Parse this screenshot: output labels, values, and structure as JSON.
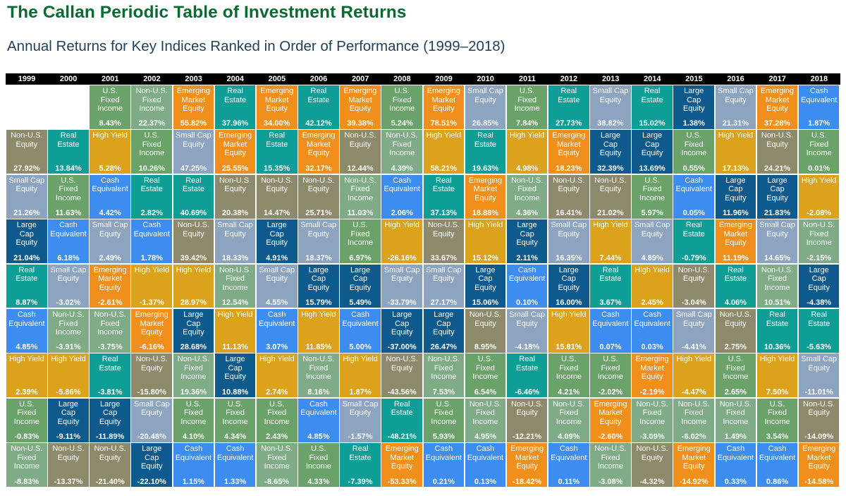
{
  "title": "The Callan Periodic Table of Investment Returns",
  "subtitle": "Annual Returns for Key Indices Ranked in Order of Performance (1999–2018)",
  "chart_data": {
    "type": "table",
    "years": [
      "1999",
      "2000",
      "2001",
      "2002",
      "2003",
      "2004",
      "2005",
      "2006",
      "2007",
      "2008",
      "2009",
      "2010",
      "2011",
      "2012",
      "2013",
      "2014",
      "2015",
      "2016",
      "2017",
      "2018"
    ],
    "asset_classes": {
      "nonus": {
        "name": "Non-U.S.\nEquity",
        "color": "#8c8a6b"
      },
      "re": {
        "name": "Real\nEstate",
        "color": "#0f9e96"
      },
      "fi": {
        "name": "U.S.\nFixed\nIncome",
        "color": "#6aa26a"
      },
      "em": {
        "name": "Emerging\nMarket\nEquity",
        "color": "#f18f1d"
      },
      "sc": {
        "name": "Small Cap\nEquity",
        "color": "#8ca4bf"
      },
      "lc": {
        "name": "Large\nCap\nEquity",
        "color": "#0f5a8c"
      },
      "cash": {
        "name": "Cash\nEquivalent",
        "color": "#3d8cf0"
      },
      "hy": {
        "name": "High Yield",
        "color": "#dca21c"
      },
      "nfi": {
        "name": "Non-U.S.\nFixed\nIncome",
        "color": "#7fab87"
      }
    },
    "columns": [
      [
        [
          "nonus",
          "27.92%"
        ],
        [
          "sc",
          "21.26%"
        ],
        [
          "lc",
          "21.04%"
        ],
        [
          "re",
          "8.87%"
        ],
        [
          "cash",
          "4.85%"
        ],
        [
          "hy",
          "2.39%"
        ],
        [
          "fi",
          "-0.83%"
        ],
        [
          "nfi",
          "-8.83%"
        ]
      ],
      [
        [
          "re",
          "13.84%"
        ],
        [
          "fi",
          "11.63%"
        ],
        [
          "cash",
          "6.18%"
        ],
        [
          "sc",
          "-3.02%"
        ],
        [
          "nfi",
          "-3.91%"
        ],
        [
          "hy",
          "-5.86%"
        ],
        [
          "lc",
          "-9.11%"
        ],
        [
          "nonus",
          "-13.37%"
        ]
      ],
      [
        [
          "fi",
          "8.43%"
        ],
        [
          "hy",
          "5.28%"
        ],
        [
          "cash",
          "4.42%"
        ],
        [
          "sc",
          "2.49%"
        ],
        [
          "em",
          "-2.61%"
        ],
        [
          "nfi",
          "-3.75%"
        ],
        [
          "re",
          "-3.81%"
        ],
        [
          "lc",
          "-11.89%"
        ],
        [
          "nonus",
          "-21.40%"
        ]
      ],
      [
        [
          "nfi",
          "22.37%"
        ],
        [
          "fi",
          "10.26%"
        ],
        [
          "re",
          "2.82%"
        ],
        [
          "cash",
          "1.78%"
        ],
        [
          "hy",
          "-1.37%"
        ],
        [
          "em",
          "-6.16%"
        ],
        [
          "nonus",
          "-15.80%"
        ],
        [
          "sc",
          "-20.48%"
        ],
        [
          "lc",
          "-22.10%"
        ]
      ],
      [
        [
          "em",
          "55.82%"
        ],
        [
          "sc",
          "47.25%"
        ],
        [
          "re",
          "40.69%"
        ],
        [
          "nonus",
          "39.42%"
        ],
        [
          "hy",
          "28.97%"
        ],
        [
          "lc",
          "28.68%"
        ],
        [
          "nfi",
          "19.36%"
        ],
        [
          "fi",
          "4.10%"
        ],
        [
          "cash",
          "1.15%"
        ]
      ],
      [
        [
          "re",
          "37.96%"
        ],
        [
          "em",
          "25.55%"
        ],
        [
          "nonus",
          "20.38%"
        ],
        [
          "sc",
          "18.33%"
        ],
        [
          "nfi",
          "12.54%"
        ],
        [
          "hy",
          "11.13%"
        ],
        [
          "lc",
          "10.88%"
        ],
        [
          "fi",
          "4.34%"
        ],
        [
          "cash",
          "1.33%"
        ]
      ],
      [
        [
          "em",
          "34.00%"
        ],
        [
          "re",
          "15.35%"
        ],
        [
          "nonus",
          "14.47%"
        ],
        [
          "lc",
          "4.91%"
        ],
        [
          "sc",
          "4.55%"
        ],
        [
          "cash",
          "3.07%"
        ],
        [
          "hy",
          "2.74%"
        ],
        [
          "fi",
          "2.43%"
        ],
        [
          "nfi",
          "-8.65%"
        ]
      ],
      [
        [
          "re",
          "42.12%"
        ],
        [
          "em",
          "32.17%"
        ],
        [
          "nonus",
          "25.71%"
        ],
        [
          "sc",
          "18.37%"
        ],
        [
          "lc",
          "15.79%"
        ],
        [
          "hy",
          "11.85%"
        ],
        [
          "nfi",
          "8.16%"
        ],
        [
          "cash",
          "4.85%"
        ],
        [
          "fi",
          "4.33%"
        ]
      ],
      [
        [
          "em",
          "39.38%"
        ],
        [
          "nonus",
          "12.44%"
        ],
        [
          "nfi",
          "11.03%"
        ],
        [
          "fi",
          "6.97%"
        ],
        [
          "lc",
          "5.49%"
        ],
        [
          "cash",
          "5.00%"
        ],
        [
          "hy",
          "1.87%"
        ],
        [
          "sc",
          "-1.57%"
        ],
        [
          "re",
          "-7.39%"
        ]
      ],
      [
        [
          "fi",
          "5.24%"
        ],
        [
          "nfi",
          "4.39%"
        ],
        [
          "cash",
          "2.06%"
        ],
        [
          "hy",
          "-26.16%"
        ],
        [
          "sc",
          "-33.79%"
        ],
        [
          "lc",
          "-37.00%"
        ],
        [
          "nonus",
          "-43.56%"
        ],
        [
          "re",
          "-48.21%"
        ],
        [
          "em",
          "-53.33%"
        ]
      ],
      [
        [
          "em",
          "78.51%"
        ],
        [
          "hy",
          "58.21%"
        ],
        [
          "re",
          "37.13%"
        ],
        [
          "nonus",
          "33.67%"
        ],
        [
          "sc",
          "27.17%"
        ],
        [
          "lc",
          "26.47%"
        ],
        [
          "nfi",
          "7.53%"
        ],
        [
          "fi",
          "5.93%"
        ],
        [
          "cash",
          "0.21%"
        ]
      ],
      [
        [
          "sc",
          "26.85%"
        ],
        [
          "re",
          "19.63%"
        ],
        [
          "em",
          "18.88%"
        ],
        [
          "hy",
          "15.12%"
        ],
        [
          "lc",
          "15.06%"
        ],
        [
          "nonus",
          "8.95%"
        ],
        [
          "fi",
          "6.54%"
        ],
        [
          "nfi",
          "4.95%"
        ],
        [
          "cash",
          "0.13%"
        ]
      ],
      [
        [
          "fi",
          "7.84%"
        ],
        [
          "hy",
          "4.98%"
        ],
        [
          "nfi",
          "4.36%"
        ],
        [
          "lc",
          "2.11%"
        ],
        [
          "cash",
          "0.10%"
        ],
        [
          "sc",
          "-4.18%"
        ],
        [
          "re",
          "-6.46%"
        ],
        [
          "nonus",
          "-12.21%"
        ],
        [
          "em",
          "-18.42%"
        ]
      ],
      [
        [
          "re",
          "27.73%"
        ],
        [
          "em",
          "18.23%"
        ],
        [
          "nonus",
          "16.41%"
        ],
        [
          "sc",
          "16.35%"
        ],
        [
          "lc",
          "16.00%"
        ],
        [
          "hy",
          "15.81%"
        ],
        [
          "fi",
          "4.21%"
        ],
        [
          "nfi",
          "4.09%"
        ],
        [
          "cash",
          "0.11%"
        ]
      ],
      [
        [
          "sc",
          "38.82%"
        ],
        [
          "lc",
          "32.39%"
        ],
        [
          "nonus",
          "21.02%"
        ],
        [
          "hy",
          "7.44%"
        ],
        [
          "re",
          "3.67%"
        ],
        [
          "cash",
          "0.07%"
        ],
        [
          "fi",
          "-2.02%"
        ],
        [
          "em",
          "-2.60%"
        ],
        [
          "nfi",
          "-3.08%"
        ]
      ],
      [
        [
          "re",
          "15.02%"
        ],
        [
          "lc",
          "13.69%"
        ],
        [
          "fi",
          "5.97%"
        ],
        [
          "sc",
          "4.89%"
        ],
        [
          "hy",
          "2.45%"
        ],
        [
          "cash",
          "0.03%"
        ],
        [
          "em",
          "-2.19%"
        ],
        [
          "nfi",
          "-3.09%"
        ],
        [
          "nonus",
          "-4.32%"
        ]
      ],
      [
        [
          "lc",
          "1.38%"
        ],
        [
          "fi",
          "0.55%"
        ],
        [
          "cash",
          "0.05%"
        ],
        [
          "re",
          "-0.79%"
        ],
        [
          "nonus",
          "-3.04%"
        ],
        [
          "sc",
          "-4.41%"
        ],
        [
          "hy",
          "-4.47%"
        ],
        [
          "nfi",
          "-6.02%"
        ],
        [
          "em",
          "-14.92%"
        ]
      ],
      [
        [
          "sc",
          "21.31%"
        ],
        [
          "hy",
          "17.13%"
        ],
        [
          "lc",
          "11.96%"
        ],
        [
          "em",
          "11.19%"
        ],
        [
          "re",
          "4.06%"
        ],
        [
          "nonus",
          "2.75%"
        ],
        [
          "fi",
          "2.65%"
        ],
        [
          "nfi",
          "1.49%"
        ],
        [
          "cash",
          "0.33%"
        ]
      ],
      [
        [
          "em",
          "37.28%"
        ],
        [
          "nonus",
          "24.21%"
        ],
        [
          "lc",
          "21.83%"
        ],
        [
          "sc",
          "14.65%"
        ],
        [
          "nfi",
          "10.51%"
        ],
        [
          "re",
          "10.36%"
        ],
        [
          "hy",
          "7.50%"
        ],
        [
          "fi",
          "3.54%"
        ],
        [
          "cash",
          "0.86%"
        ]
      ],
      [
        [
          "cash",
          "1.87%"
        ],
        [
          "fi",
          "0.01%"
        ],
        [
          "hy",
          "-2.08%"
        ],
        [
          "nfi",
          "-2.15%"
        ],
        [
          "lc",
          "-4.38%"
        ],
        [
          "re",
          "-5.63%"
        ],
        [
          "sc",
          "-11.01%"
        ],
        [
          "nonus",
          "-14.09%"
        ],
        [
          "em",
          "-14.58%"
        ]
      ]
    ]
  }
}
